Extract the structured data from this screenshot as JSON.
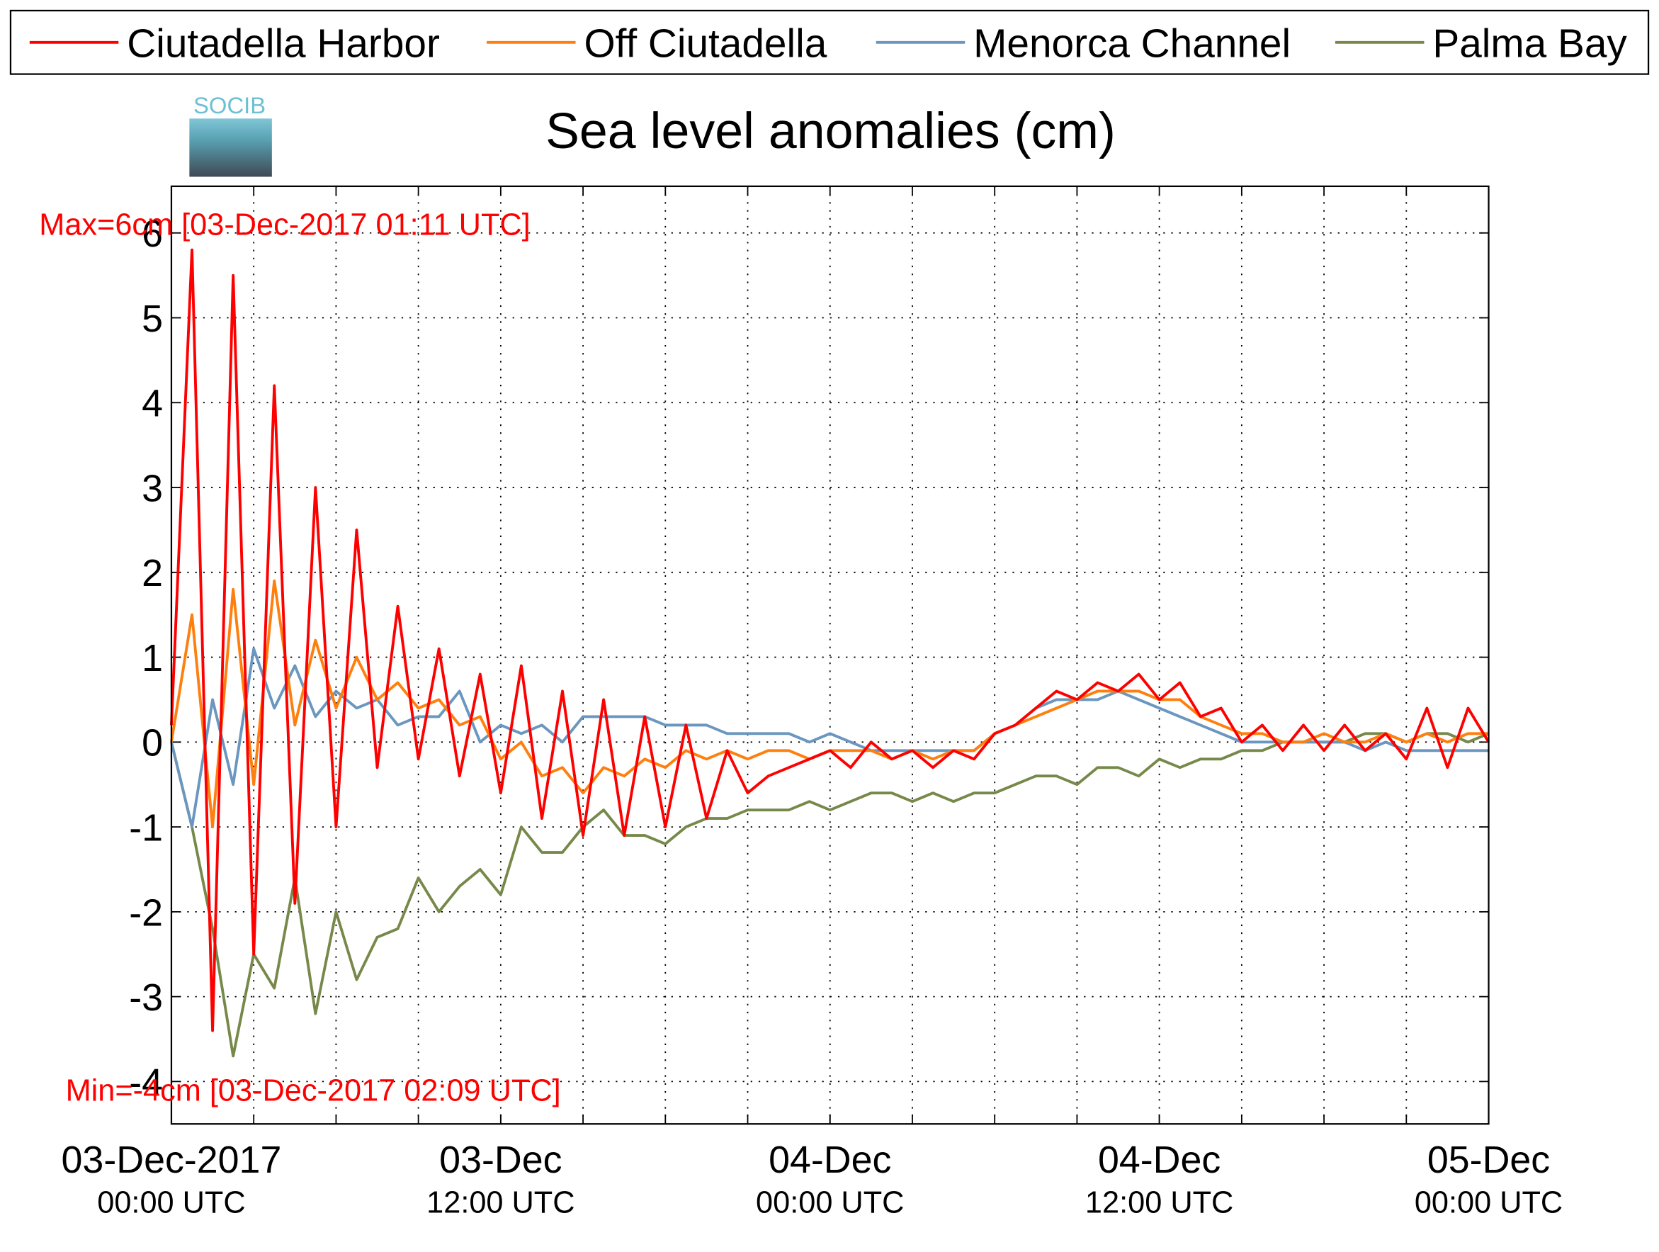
{
  "chart_data": {
    "type": "line",
    "title": "Sea level anomalies (cm)",
    "logo_text": "SOCIB",
    "annotations": [
      "Max=6cm [03-Dec-2017 01:11 UTC]",
      "Min=-4cm [03-Dec-2017 02:09 UTC]"
    ],
    "x": [
      0,
      1,
      2,
      3,
      4,
      5,
      6,
      7,
      8,
      9,
      10,
      11,
      12,
      13,
      14,
      15,
      16,
      17,
      18,
      19,
      20,
      21,
      22,
      23,
      24,
      25,
      26,
      27,
      28,
      29,
      30,
      31,
      32,
      33,
      34,
      35,
      36,
      37,
      38,
      39,
      40,
      41,
      42,
      43,
      44,
      45,
      46,
      47,
      48,
      49,
      50,
      51,
      52,
      53,
      54,
      55,
      56,
      57,
      58,
      59,
      60,
      61,
      62,
      63,
      64
    ],
    "xlim": [
      0,
      64
    ],
    "xticks": [
      {
        "value": 0,
        "label": [
          "03-Dec-2017",
          "00:00 UTC"
        ]
      },
      {
        "value": 16,
        "label": [
          "03-Dec",
          "12:00 UTC"
        ]
      },
      {
        "value": 32,
        "label": [
          "04-Dec",
          "00:00 UTC"
        ]
      },
      {
        "value": 48,
        "label": [
          "04-Dec",
          "12:00 UTC"
        ]
      },
      {
        "value": 64,
        "label": [
          "05-Dec",
          "00:00 UTC"
        ]
      }
    ],
    "xminor_ticks": [
      0,
      4,
      8,
      12,
      16,
      20,
      24,
      28,
      32,
      36,
      40,
      44,
      48,
      52,
      56,
      60,
      64
    ],
    "ylim": [
      -4.5,
      6.55
    ],
    "yticks": [
      -4,
      -3,
      -2,
      -1,
      0,
      1,
      2,
      3,
      4,
      5,
      6
    ],
    "grid": true,
    "legend": "top",
    "series": [
      {
        "name": "Ciutadella Harbor",
        "color": "#ff0000",
        "values": [
          0.2,
          5.8,
          -3.4,
          5.5,
          -2.5,
          4.2,
          -1.9,
          3.0,
          -1.0,
          2.5,
          -0.3,
          1.6,
          -0.2,
          1.1,
          -0.4,
          0.8,
          -0.6,
          0.9,
          -0.9,
          0.6,
          -1.1,
          0.5,
          -1.1,
          0.3,
          -1.0,
          0.2,
          -0.9,
          -0.1,
          -0.6,
          -0.4,
          -0.3,
          -0.2,
          -0.1,
          -0.3,
          0.0,
          -0.2,
          -0.1,
          -0.3,
          -0.1,
          -0.2,
          0.1,
          0.2,
          0.4,
          0.6,
          0.5,
          0.7,
          0.6,
          0.8,
          0.5,
          0.7,
          0.3,
          0.4,
          0.0,
          0.2,
          -0.1,
          0.2,
          -0.1,
          0.2,
          -0.1,
          0.1,
          -0.2,
          0.4,
          -0.3,
          0.4,
          0.0
        ]
      },
      {
        "name": "Off Ciutadella",
        "color": "#ff7f0e",
        "values": [
          0,
          1.5,
          -1.0,
          1.8,
          -0.5,
          1.9,
          0.2,
          1.2,
          0.4,
          1.0,
          0.5,
          0.7,
          0.4,
          0.5,
          0.2,
          0.3,
          -0.2,
          0.0,
          -0.4,
          -0.3,
          -0.6,
          -0.3,
          -0.4,
          -0.2,
          -0.3,
          -0.1,
          -0.2,
          -0.1,
          -0.2,
          -0.1,
          -0.1,
          -0.2,
          -0.1,
          -0.1,
          -0.1,
          -0.2,
          -0.1,
          -0.2,
          -0.1,
          -0.1,
          0.1,
          0.2,
          0.3,
          0.4,
          0.5,
          0.6,
          0.6,
          0.6,
          0.5,
          0.5,
          0.3,
          0.2,
          0.1,
          0.1,
          0.0,
          0.0,
          0.1,
          0.0,
          0.0,
          0.1,
          0.0,
          0.1,
          0.0,
          0.1,
          0.1
        ]
      },
      {
        "name": "Menorca Channel",
        "color": "#6a96bf",
        "values": [
          0,
          -1.0,
          0.5,
          -0.5,
          1.1,
          0.4,
          0.9,
          0.3,
          0.6,
          0.4,
          0.5,
          0.2,
          0.3,
          0.3,
          0.6,
          0.0,
          0.2,
          0.1,
          0.2,
          0.0,
          0.3,
          0.3,
          0.3,
          0.3,
          0.2,
          0.2,
          0.2,
          0.1,
          0.1,
          0.1,
          0.1,
          0.0,
          0.1,
          0.0,
          -0.1,
          -0.1,
          -0.1,
          -0.1,
          -0.1,
          -0.1,
          0.1,
          0.2,
          0.4,
          0.5,
          0.5,
          0.5,
          0.6,
          0.5,
          0.4,
          0.3,
          0.2,
          0.1,
          0.0,
          0.0,
          0.0,
          0.0,
          0.0,
          0.0,
          -0.1,
          0.0,
          -0.1,
          -0.1,
          -0.1,
          -0.1,
          -0.1
        ]
      },
      {
        "name": "Palma Bay",
        "color": "#77894a",
        "values": [
          0,
          -1.0,
          -2.2,
          -3.7,
          -2.5,
          -2.9,
          -1.6,
          -3.2,
          -2.0,
          -2.8,
          -2.3,
          -2.2,
          -1.6,
          -2.0,
          -1.7,
          -1.5,
          -1.8,
          -1.0,
          -1.3,
          -1.3,
          -1.0,
          -0.8,
          -1.1,
          -1.1,
          -1.2,
          -1.0,
          -0.9,
          -0.9,
          -0.8,
          -0.8,
          -0.8,
          -0.7,
          -0.8,
          -0.7,
          -0.6,
          -0.6,
          -0.7,
          -0.6,
          -0.7,
          -0.6,
          -0.6,
          -0.5,
          -0.4,
          -0.4,
          -0.5,
          -0.3,
          -0.3,
          -0.4,
          -0.2,
          -0.3,
          -0.2,
          -0.2,
          -0.1,
          -0.1,
          0.0,
          0.0,
          0.0,
          0.0,
          0.1,
          0.1,
          0.0,
          0.1,
          0.1,
          0.0,
          0.1
        ]
      }
    ]
  }
}
